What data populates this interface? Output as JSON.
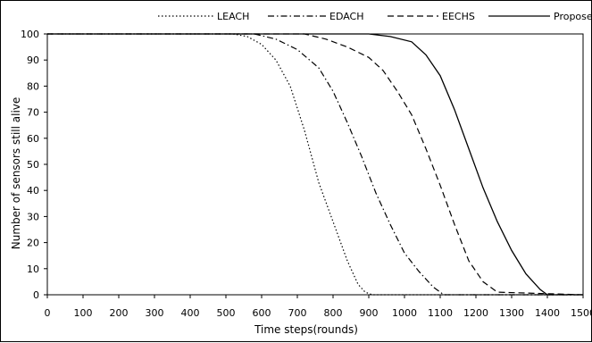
{
  "chart_data": {
    "type": "line",
    "title": "",
    "xlabel": "Time steps(rounds)",
    "ylabel": "Number of sensors still alive",
    "xlim": [
      0,
      1500
    ],
    "ylim": [
      0,
      100
    ],
    "xticks": [
      0,
      100,
      200,
      300,
      400,
      500,
      600,
      700,
      800,
      900,
      1000,
      1100,
      1200,
      1300,
      1400,
      1500
    ],
    "yticks": [
      0,
      10,
      20,
      30,
      40,
      50,
      60,
      70,
      80,
      90,
      100
    ],
    "grid": false,
    "legend_position": "top",
    "series": [
      {
        "name": "LEACH",
        "style": "dotted",
        "color": "#000000",
        "x": [
          0,
          520,
          560,
          600,
          640,
          680,
          720,
          760,
          800,
          840,
          870,
          890,
          910,
          1500
        ],
        "y": [
          100,
          100,
          99,
          96,
          90,
          80,
          63,
          43,
          28,
          13,
          4,
          1,
          0,
          0
        ]
      },
      {
        "name": "EDACH",
        "style": "dashdot",
        "color": "#000000",
        "x": [
          0,
          580,
          640,
          700,
          760,
          800,
          840,
          880,
          920,
          960,
          1000,
          1040,
          1080,
          1110,
          1500
        ],
        "y": [
          100,
          100,
          98,
          94,
          87,
          78,
          66,
          53,
          39,
          27,
          16,
          9,
          3,
          0,
          0
        ]
      },
      {
        "name": "EECHS",
        "style": "dashed",
        "color": "#000000",
        "x": [
          0,
          720,
          780,
          840,
          900,
          940,
          980,
          1020,
          1060,
          1100,
          1140,
          1180,
          1220,
          1260,
          1500
        ],
        "y": [
          100,
          100,
          98,
          95,
          91,
          86,
          78,
          69,
          56,
          42,
          27,
          13,
          5,
          1,
          0
        ]
      },
      {
        "name": "Proposed",
        "style": "solid",
        "color": "#000000",
        "x": [
          0,
          900,
          960,
          1020,
          1060,
          1100,
          1140,
          1180,
          1220,
          1260,
          1300,
          1340,
          1380,
          1400,
          1500
        ],
        "y": [
          100,
          100,
          99,
          97,
          92,
          84,
          71,
          56,
          41,
          28,
          17,
          8,
          2,
          0,
          0
        ]
      }
    ]
  }
}
